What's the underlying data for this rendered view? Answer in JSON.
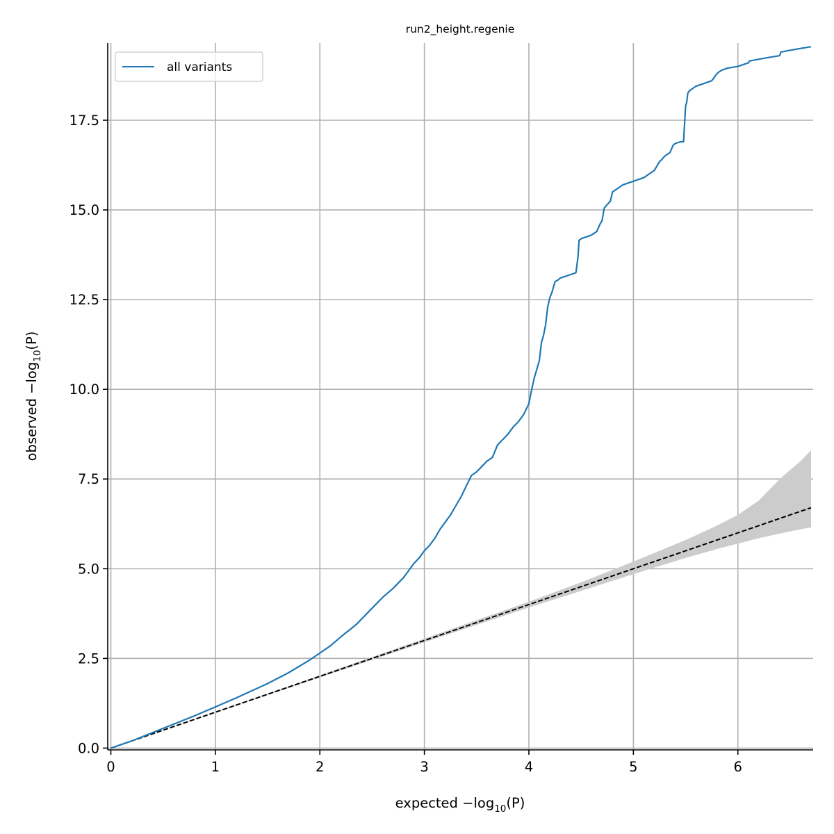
{
  "chart_data": {
    "type": "line",
    "title": "run2_height.regenie",
    "xlabel": {
      "prefix": "expected −log",
      "sub": "10",
      "suffix": "(P)"
    },
    "ylabel": {
      "prefix": "observed −log",
      "sub": "10",
      "suffix": "(P)"
    },
    "xlim": [
      -0.03,
      6.72
    ],
    "ylim": [
      -0.05,
      19.65
    ],
    "xticks": [
      0,
      1,
      2,
      3,
      4,
      5,
      6
    ],
    "xtick_labels": [
      "0",
      "1",
      "2",
      "3",
      "4",
      "5",
      "6"
    ],
    "yticks": [
      0,
      2.5,
      5,
      7.5,
      10,
      12.5,
      15,
      17.5
    ],
    "ytick_labels": [
      "0.0",
      "2.5",
      "5.0",
      "7.5",
      "10.0",
      "12.5",
      "15.0",
      "17.5"
    ],
    "grid": true,
    "legend": {
      "position": "top-left",
      "entries": [
        "all variants"
      ]
    },
    "colors": {
      "series": "#1f77b4",
      "null_line": "#000000",
      "band": "#cccccc",
      "grid": "#b0b0b0"
    },
    "series": [
      {
        "name": "all variants",
        "x": [
          0,
          0.2,
          0.5,
          0.8,
          1.0,
          1.2,
          1.5,
          1.7,
          1.9,
          2.0,
          2.1,
          2.2,
          2.35,
          2.45,
          2.55,
          2.6,
          2.7,
          2.8,
          2.85,
          2.9,
          2.95,
          3.0,
          3.05,
          3.1,
          3.15,
          3.2,
          3.25,
          3.3,
          3.35,
          3.4,
          3.45,
          3.5,
          3.55,
          3.6,
          3.65,
          3.7,
          3.75,
          3.8,
          3.85,
          3.9,
          3.95,
          4.0,
          4.02,
          4.05,
          4.08,
          4.1,
          4.12,
          4.14,
          4.16,
          4.18,
          4.2,
          4.22,
          4.25,
          4.28,
          4.3,
          4.35,
          4.4,
          4.45,
          4.47,
          4.48,
          4.5,
          4.55,
          4.6,
          4.65,
          4.68,
          4.7,
          4.72,
          4.75,
          4.78,
          4.8,
          4.85,
          4.9,
          4.95,
          5.0,
          5.05,
          5.1,
          5.15,
          5.2,
          5.25,
          5.27,
          5.3,
          5.35,
          5.38,
          5.4,
          5.45,
          5.48,
          5.5,
          5.51,
          5.52,
          5.53,
          5.55,
          5.6,
          5.65,
          5.7,
          5.75,
          5.8,
          5.82,
          5.85,
          5.9,
          6.0,
          6.1,
          6.11,
          6.2,
          6.3,
          6.4,
          6.41,
          6.5,
          6.6,
          6.7
        ],
        "y": [
          0,
          0.2,
          0.55,
          0.9,
          1.15,
          1.4,
          1.8,
          2.1,
          2.45,
          2.65,
          2.85,
          3.1,
          3.45,
          3.75,
          4.05,
          4.2,
          4.45,
          4.75,
          4.95,
          5.15,
          5.3,
          5.5,
          5.65,
          5.85,
          6.1,
          6.3,
          6.5,
          6.75,
          7.0,
          7.3,
          7.6,
          7.7,
          7.85,
          8.0,
          8.1,
          8.45,
          8.6,
          8.75,
          8.95,
          9.1,
          9.3,
          9.6,
          9.9,
          10.3,
          10.6,
          10.8,
          11.3,
          11.5,
          11.8,
          12.3,
          12.55,
          12.7,
          13.0,
          13.05,
          13.1,
          13.15,
          13.2,
          13.25,
          13.7,
          14.15,
          14.2,
          14.25,
          14.3,
          14.4,
          14.6,
          14.7,
          15.05,
          15.15,
          15.25,
          15.5,
          15.6,
          15.7,
          15.75,
          15.8,
          15.85,
          15.9,
          16.0,
          16.1,
          16.35,
          16.4,
          16.5,
          16.6,
          16.8,
          16.85,
          16.9,
          16.9,
          17.9,
          18.0,
          18.25,
          18.3,
          18.35,
          18.45,
          18.5,
          18.55,
          18.6,
          18.8,
          18.85,
          18.9,
          18.95,
          19.0,
          19.1,
          19.15,
          19.2,
          19.25,
          19.3,
          19.4,
          19.45,
          19.5,
          19.55
        ]
      }
    ],
    "null_line": {
      "x": [
        0,
        6.7
      ],
      "y": [
        0,
        6.7
      ],
      "style": "dashed"
    },
    "confidence_band": {
      "x": [
        0,
        1,
        2,
        3,
        4,
        4.5,
        5,
        5.5,
        5.8,
        6.0,
        6.2,
        6.4,
        6.6,
        6.7
      ],
      "lower": [
        0,
        0.99,
        1.97,
        2.95,
        3.92,
        4.38,
        4.85,
        5.3,
        5.55,
        5.7,
        5.85,
        5.98,
        6.1,
        6.15
      ],
      "upper": [
        0,
        1.01,
        2.03,
        3.05,
        4.08,
        4.62,
        5.2,
        5.8,
        6.2,
        6.5,
        6.9,
        7.5,
        8.0,
        8.3
      ]
    }
  }
}
